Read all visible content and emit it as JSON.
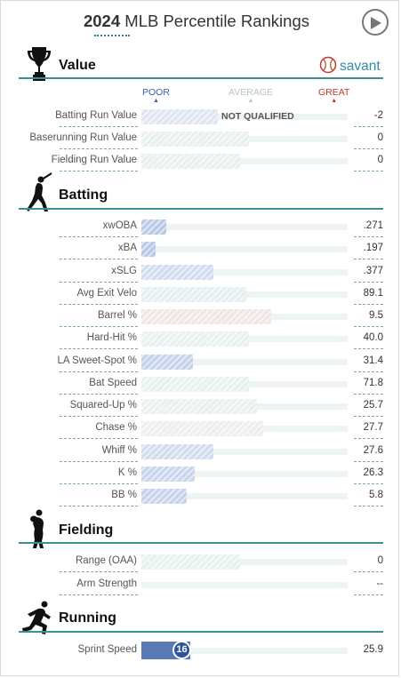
{
  "header": {
    "year": "2024",
    "title": "MLB Percentile Rankings"
  },
  "brand": {
    "name": "savant",
    "accent": "#2f8fa6"
  },
  "scale": {
    "poor": "POOR",
    "average": "AVERAGE",
    "great": "GREAT",
    "poor_color": "#3a5ea5",
    "average_color": "#b8c4c6",
    "great_color": "#c0392b"
  },
  "sections": {
    "value": {
      "title": "Value",
      "icon": "trophy-icon"
    },
    "batting": {
      "title": "Batting",
      "icon": "batter-icon"
    },
    "fielding": {
      "title": "Fielding",
      "icon": "fielder-icon"
    },
    "running": {
      "title": "Running",
      "icon": "runner-icon"
    }
  },
  "value_rows": [
    {
      "label": "Batting Run Value",
      "value": "-2",
      "percentile": 37,
      "note": "NOT QUALIFIED",
      "color": "#dfe6f1"
    },
    {
      "label": "Baserunning Run Value",
      "value": "0",
      "percentile": 52,
      "color": "#e8f1f0"
    },
    {
      "label": "Fielding Run Value",
      "value": "0",
      "percentile": 48,
      "color": "#e8f1f0"
    }
  ],
  "batting_rows": [
    {
      "label": "xwOBA",
      "value": ".271",
      "percentile": 12,
      "color": "#b9c8e6"
    },
    {
      "label": "xBA",
      "value": ".197",
      "percentile": 7,
      "color": "#b9c8e6"
    },
    {
      "label": "xSLG",
      "value": ".377",
      "percentile": 35,
      "color": "#d1dcef"
    },
    {
      "label": "Avg Exit Velo",
      "value": "89.1",
      "percentile": 51,
      "color": "#e6eff0"
    },
    {
      "label": "Barrel %",
      "value": "9.5",
      "percentile": 63,
      "color": "#f0e6e4"
    },
    {
      "label": "Hard-Hit %",
      "value": "40.0",
      "percentile": 52,
      "color": "#e8f1f0"
    },
    {
      "label": "LA Sweet-Spot %",
      "value": "31.4",
      "percentile": 25,
      "color": "#c6d3ec"
    },
    {
      "label": "Bat Speed",
      "value": "71.8",
      "percentile": 52,
      "color": "#e8f1f0"
    },
    {
      "label": "Squared-Up %",
      "value": "25.7",
      "percentile": 56,
      "color": "#ebf0ef"
    },
    {
      "label": "Chase %",
      "value": "27.7",
      "percentile": 59,
      "color": "#ecefee"
    },
    {
      "label": "Whiff %",
      "value": "27.6",
      "percentile": 35,
      "color": "#d1dcef"
    },
    {
      "label": "K %",
      "value": "26.3",
      "percentile": 26,
      "color": "#c9d5ed"
    },
    {
      "label": "BB %",
      "value": "5.8",
      "percentile": 22,
      "color": "#c6d3ec"
    }
  ],
  "fielding_rows": [
    {
      "label": "Range (OAA)",
      "value": "0",
      "percentile": 48,
      "color": "#e8f1f0"
    },
    {
      "label": "Arm Strength",
      "value": "--",
      "percentile": 0,
      "color": "#e8f1f0"
    }
  ],
  "running_rows": [
    {
      "label": "Sprint Speed",
      "value": "25.9",
      "percentile": 16,
      "percentile_label": "16",
      "color": "#5a78b4"
    }
  ]
}
